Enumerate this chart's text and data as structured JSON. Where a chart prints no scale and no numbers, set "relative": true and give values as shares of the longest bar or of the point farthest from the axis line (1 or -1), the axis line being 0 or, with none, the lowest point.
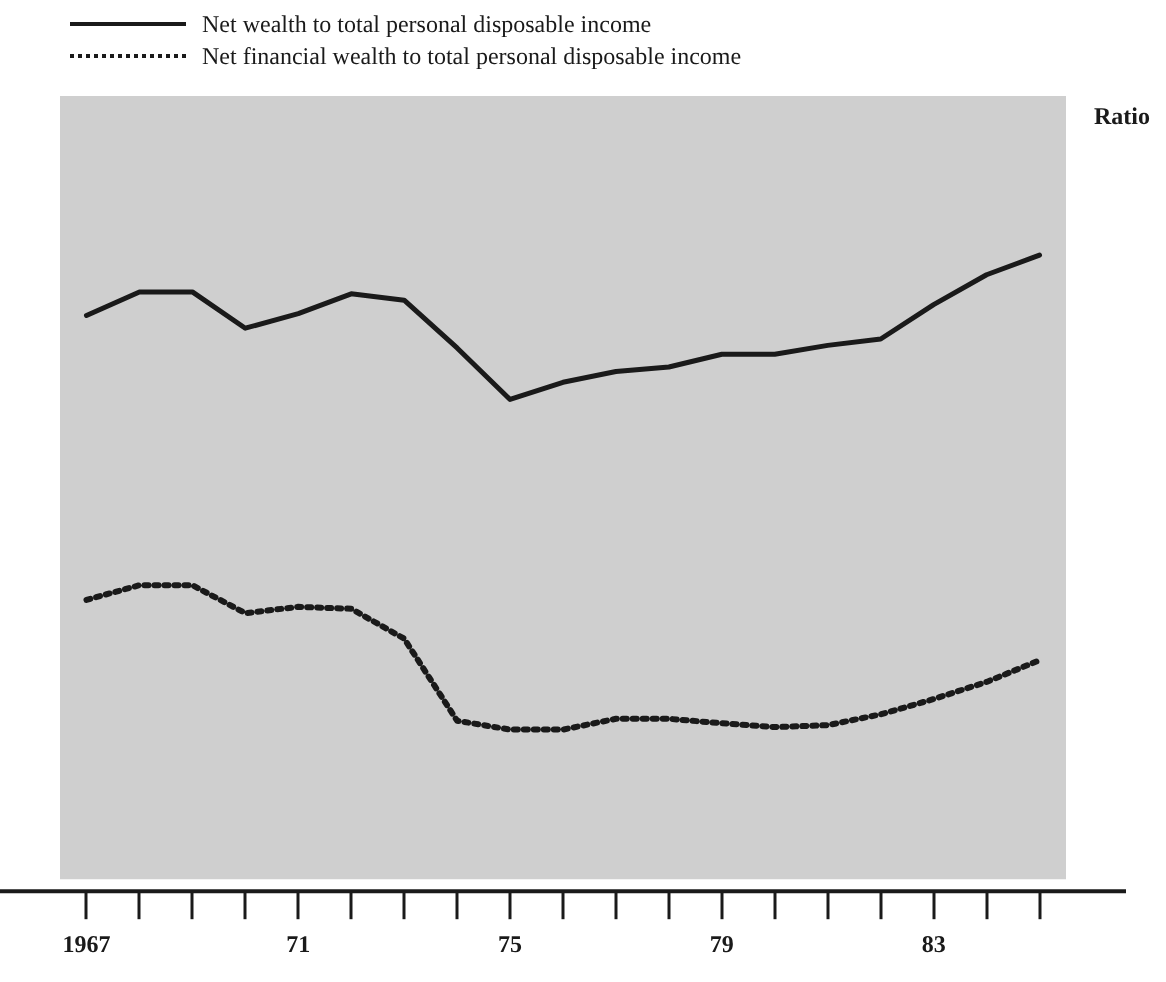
{
  "chart_data": {
    "type": "line",
    "relative": true,
    "annotations": [
      "Ratio"
    ],
    "legend": "top left",
    "marker": "none",
    "grid": false,
    "categories": [
      "1967",
      null,
      null,
      null,
      "71",
      null,
      null,
      null,
      "75",
      null,
      null,
      null,
      "79",
      null,
      null,
      null,
      "83",
      null,
      null
    ],
    "series": [
      {
        "name": "Net wealth to total personal disposable income",
        "color": "#1a1a1a",
        "line_style": "solid",
        "values": [
          0.905,
          0.942,
          0.942,
          0.885,
          0.908,
          0.939,
          0.929,
          0.854,
          0.773,
          0.8,
          0.817,
          0.824,
          0.844,
          0.844,
          0.858,
          0.868,
          0.922,
          0.969,
          1
        ]
      },
      {
        "name": "Net financial wealth to total personal disposable income",
        "color": "#1a1a1a",
        "line_style": "dotted",
        "values": [
          0.458,
          0.481,
          0.481,
          0.437,
          0.447,
          0.444,
          0.397,
          0.268,
          0.254,
          0.254,
          0.271,
          0.271,
          0.264,
          0.258,
          0.261,
          0.278,
          0.302,
          0.329,
          0.363
        ]
      }
    ]
  }
}
